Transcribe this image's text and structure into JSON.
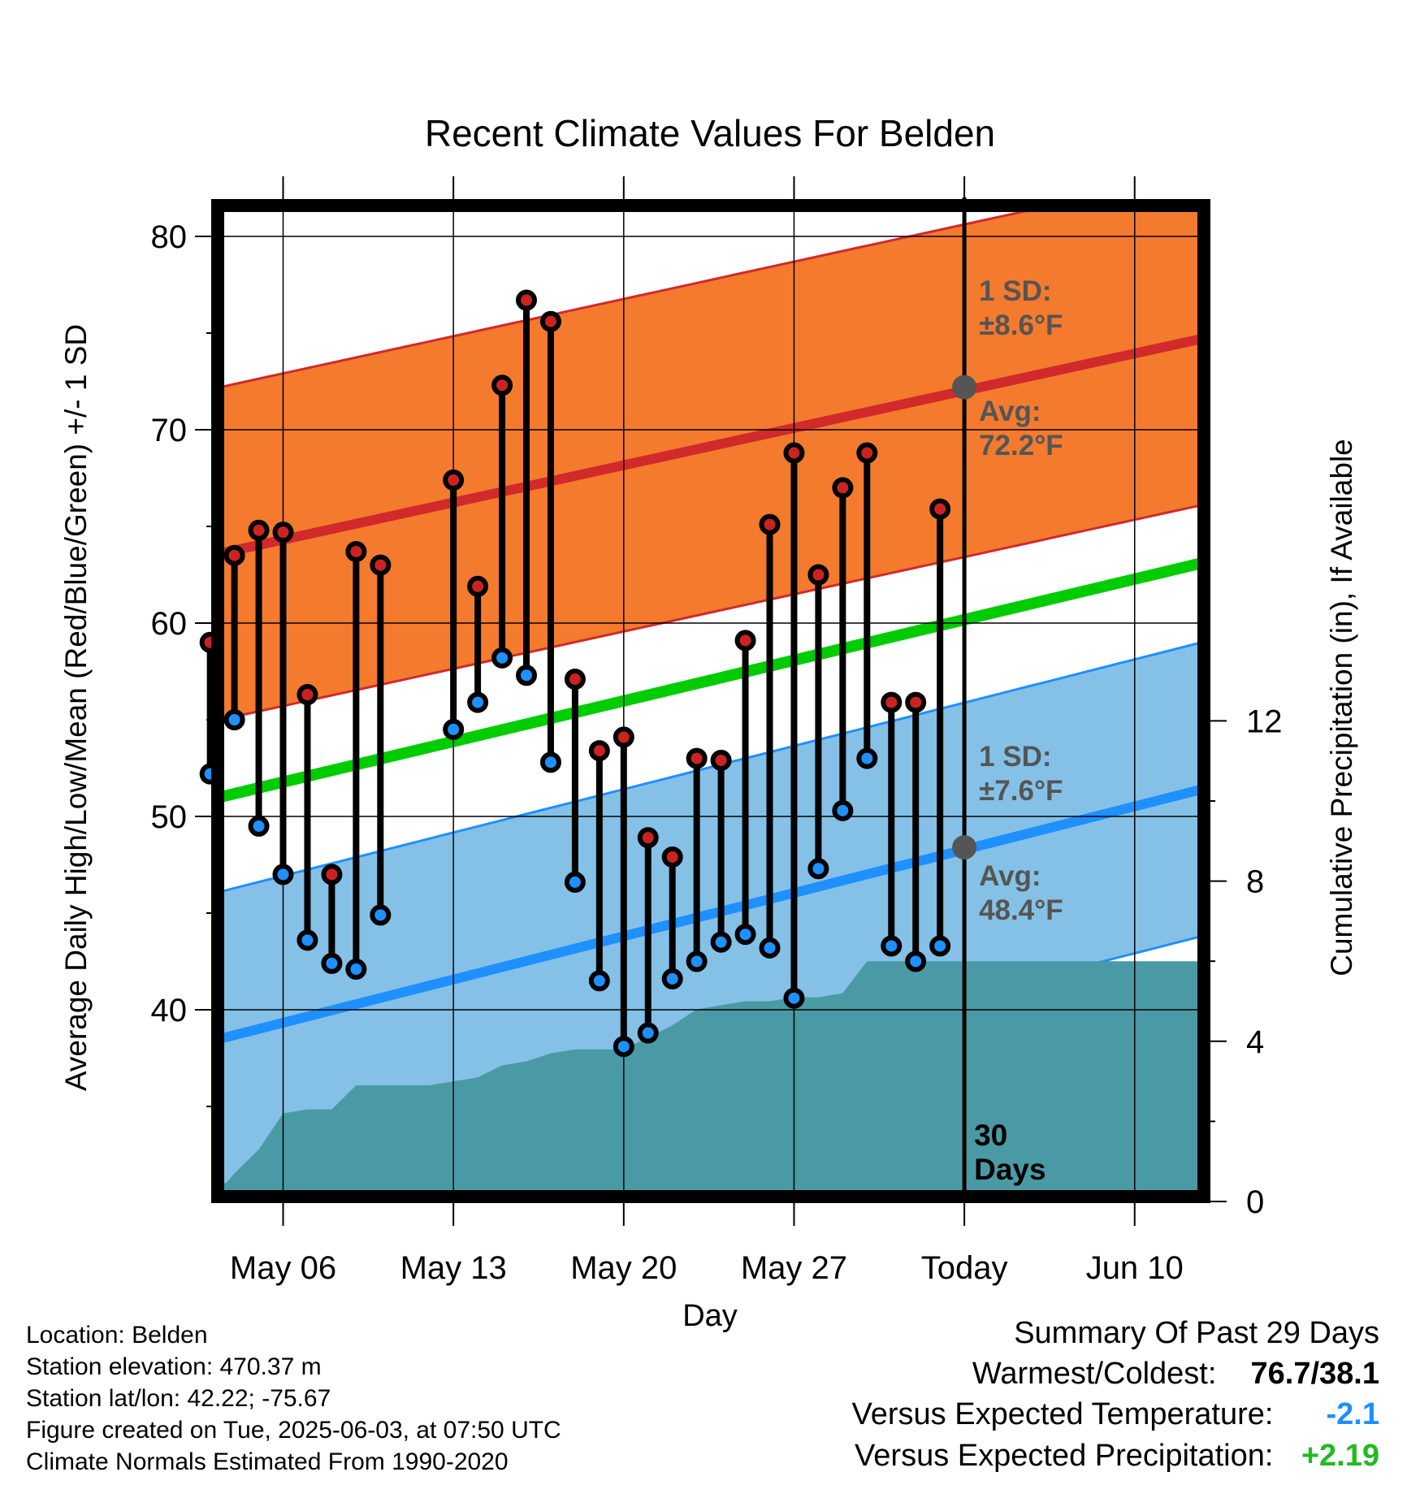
{
  "chart_data": {
    "type": "line",
    "title": "Recent Climate Values For Belden",
    "xlabel": "Day",
    "ylabel": "Average Daily High/Low/Mean (Red/Blue/Green) +/- 1 SD",
    "y2label": "Cumulative Precipitation (in), If Available",
    "ylim": [
      30,
      81
    ],
    "y2lim": [
      0,
      20
    ],
    "yticks": [
      40,
      50,
      60,
      70,
      80
    ],
    "y2ticks": [
      0,
      4,
      8,
      12
    ],
    "xlim": [
      2.3,
      13.2
    ],
    "xticks": [
      {
        "label": "May 06",
        "x": 6
      },
      {
        "label": "May 13",
        "x": 13
      },
      {
        "label": "May 20",
        "x": 20
      },
      {
        "label": "May 27",
        "x": 27
      },
      {
        "label": "Today",
        "x": 34
      },
      {
        "label": "Jun 10",
        "x": 41
      }
    ],
    "days": [
      3,
      4,
      5,
      6,
      7,
      8,
      9,
      10,
      11,
      13,
      14,
      15,
      16,
      17,
      18,
      19,
      20,
      21,
      22,
      23,
      24,
      25,
      26,
      27,
      28,
      29,
      30,
      31,
      32,
      33
    ],
    "highs": [
      59.0,
      63.5,
      64.8,
      64.7,
      56.3,
      47.0,
      63.7,
      63.0,
      null,
      67.4,
      61.9,
      72.3,
      76.7,
      75.6,
      57.1,
      53.4,
      54.1,
      48.9,
      47.9,
      53.0,
      52.9,
      59.1,
      65.1,
      68.8,
      62.5,
      67.0,
      68.8,
      55.9,
      55.9,
      65.9
    ],
    "lows": [
      52.2,
      55.0,
      49.5,
      47.0,
      43.6,
      42.4,
      42.1,
      44.9,
      null,
      54.5,
      55.9,
      58.2,
      57.3,
      52.8,
      46.6,
      41.5,
      38.1,
      38.8,
      41.6,
      42.5,
      43.5,
      43.9,
      43.2,
      40.6,
      47.3,
      50.3,
      53.0,
      43.3,
      42.5,
      43.3
    ],
    "normal_high_avg_range": [
      63.6,
      74.7
    ],
    "normal_low_avg_range": [
      38.5,
      51.4
    ],
    "normal_mean_range": [
      51.0,
      63.1
    ],
    "precip_days": [
      3,
      4,
      5,
      6,
      7,
      8,
      9,
      10,
      11,
      12,
      13,
      14,
      15,
      16,
      17,
      18,
      19,
      20,
      21,
      22,
      23,
      24,
      25,
      26,
      27,
      28,
      29,
      30,
      31,
      32,
      33,
      34,
      44
    ],
    "precip_cumulative": [
      0.0,
      0.7,
      1.3,
      2.2,
      2.3,
      2.3,
      2.9,
      2.9,
      2.9,
      2.9,
      3.0,
      3.1,
      3.4,
      3.5,
      3.7,
      3.8,
      3.8,
      3.8,
      4.1,
      4.4,
      4.8,
      4.9,
      5.0,
      5.0,
      5.1,
      5.1,
      5.2,
      6.0,
      6.0,
      6.0,
      6.0,
      6.0,
      6.0
    ],
    "today_high_avg": "72.2",
    "today_low_avg": "48.4",
    "high_sd": "8.6",
    "low_sd": "7.6",
    "window_label": [
      "30",
      "Days"
    ],
    "colors": {
      "high_band": "#f47a2e",
      "high_avg": "#d12a2a",
      "low_band": "#85c1e6",
      "low_avg": "#1e90ff",
      "mean": "#00cc00",
      "precip": "#4a9aa5",
      "high_dot": "#cc2222",
      "low_dot": "#1e90ff",
      "annot": "#555555"
    }
  },
  "annotations": {
    "high_sd_line1": "1 SD:",
    "high_sd_line2": "±8.6°F",
    "high_avg_line1": "Avg:",
    "high_avg_line2": "72.2°F",
    "low_sd_line1": "1 SD:",
    "low_sd_line2": "±7.6°F",
    "low_avg_line1": "Avg:",
    "low_avg_line2": "48.4°F"
  },
  "footer": {
    "location": "Location: Belden",
    "elevation": "Station elevation: 470.37 m",
    "latlon": "Station lat/lon: 42.22; -75.67",
    "created": "Figure created on Tue, 2025-06-03, at 07:50 UTC",
    "normals": "Climate Normals Estimated From 1990-2020"
  },
  "summary": {
    "title": "Summary Of Past 29 Days",
    "warm_cold_label": "Warmest/Coldest:",
    "warm_cold_value": "76.7/38.1",
    "temp_label": "Versus Expected Temperature:",
    "temp_value": "-2.1",
    "temp_color": "#1e90ff",
    "precip_label": "Versus Expected Precipitation:",
    "precip_value": "+2.19",
    "precip_color": "#22bb22"
  }
}
